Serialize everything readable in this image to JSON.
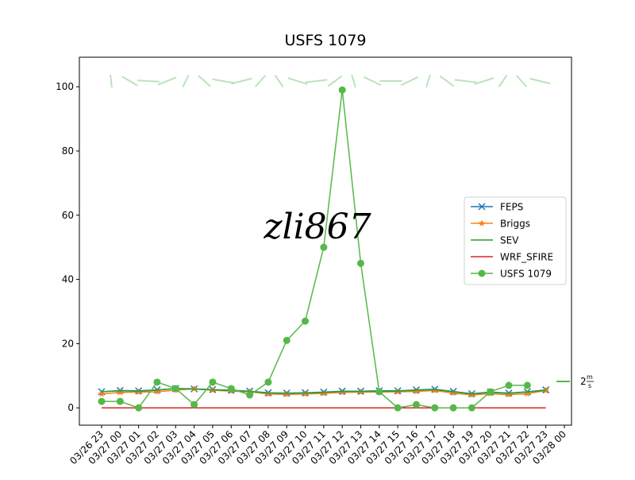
{
  "chart_data": {
    "type": "line",
    "title": "USFS 1079",
    "x": [
      "03/26 23",
      "03/27 00",
      "03/27 01",
      "03/27 02",
      "03/27 03",
      "03/27 04",
      "03/27 05",
      "03/27 06",
      "03/27 07",
      "03/27 08",
      "03/27 09",
      "03/27 10",
      "03/27 11",
      "03/27 12",
      "03/27 13",
      "03/27 14",
      "03/27 15",
      "03/27 16",
      "03/27 17",
      "03/27 18",
      "03/27 19",
      "03/27 20",
      "03/27 21",
      "03/27 22",
      "03/27 23",
      "03/28 00"
    ],
    "ylim": [
      -5.4,
      109.2
    ],
    "yticks": [
      0,
      20,
      40,
      60,
      80,
      100
    ],
    "grid": false,
    "legend": "center right",
    "series": [
      {
        "name": "FEPS",
        "color": "#1f77b4",
        "marker": "x",
        "values": [
          5,
          5.4,
          5.3,
          5.6,
          6,
          5.9,
          5.7,
          5.5,
          5.2,
          4.7,
          4.6,
          4.7,
          4.9,
          5.2,
          5.2,
          5.3,
          5.3,
          5.6,
          5.8,
          5.1,
          4.4,
          4.9,
          4.6,
          5,
          5.6,
          null
        ]
      },
      {
        "name": "Briggs",
        "color": "#ff7f0e",
        "marker": "star",
        "values": [
          4.3,
          4.8,
          4.9,
          5,
          5.5,
          5.9,
          5.5,
          5.2,
          5,
          4.3,
          4.2,
          4.3,
          4.5,
          4.8,
          4.9,
          4.9,
          5,
          5.1,
          5.4,
          4.6,
          4,
          4.4,
          4.1,
          4.4,
          5.4,
          null
        ]
      },
      {
        "name": "SEV",
        "color": "#2ca02c",
        "marker": "none",
        "values": [
          5,
          5.3,
          5.2,
          5.5,
          6,
          5.8,
          5.6,
          5.4,
          5.1,
          4.6,
          4.5,
          4.6,
          4.8,
          5.1,
          5.1,
          5.2,
          5.2,
          5.5,
          5.7,
          5,
          4.3,
          4.8,
          4.5,
          4.9,
          5.5,
          null
        ]
      },
      {
        "name": "WRF_SFIRE",
        "color": "#d62728",
        "marker": "none",
        "values": [
          0,
          0,
          0,
          0,
          0,
          0,
          0,
          0,
          0,
          0,
          0,
          0,
          0,
          0,
          0,
          0,
          0,
          0,
          0,
          0,
          0,
          0,
          0,
          0,
          0,
          null
        ]
      },
      {
        "name": "USFS 1079",
        "color": "#55b849",
        "marker": "circle",
        "values": [
          2,
          2,
          0,
          8,
          6,
          1,
          8,
          6,
          4,
          8,
          21,
          27,
          50,
          99,
          45,
          5,
          0,
          1,
          0,
          0,
          0,
          5,
          7,
          7,
          null,
          null
        ]
      }
    ],
    "quiver_key": {
      "value": "2",
      "unit_top": "m",
      "unit_bottom": "s"
    },
    "watermark": "zli867"
  }
}
